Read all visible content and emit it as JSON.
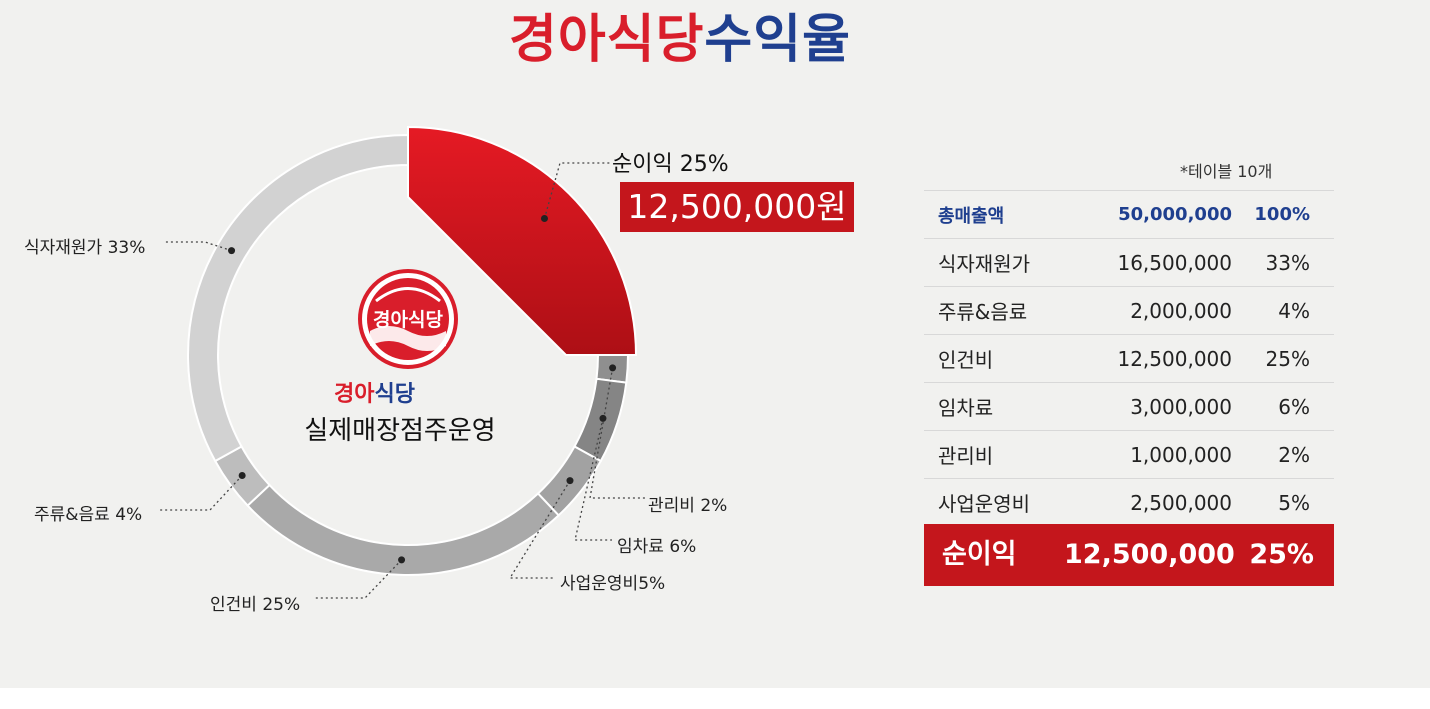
{
  "header": {
    "title_red": "경아식당",
    "title_blue": "수익율"
  },
  "chart_data": {
    "type": "pie",
    "variant": "donut",
    "slices": [
      {
        "name": "순이익",
        "value": 25,
        "color": "#d3131b"
      },
      {
        "name": "관리비",
        "value": 2,
        "color": "#8f8f8f"
      },
      {
        "name": "임차료",
        "value": 6,
        "color": "#858585"
      },
      {
        "name": "사업운영비",
        "value": 5,
        "color": "#a2a2a2"
      },
      {
        "name": "인건비",
        "value": 25,
        "color": "#a9a9a9"
      },
      {
        "name": "주류&음료",
        "value": 4,
        "color": "#bdbdbd"
      },
      {
        "name": "식자재원가",
        "value": 33,
        "color": "#d2d2d2"
      }
    ],
    "labels": {
      "net": "순이익 25%",
      "net_amount": "12,500,000원",
      "mgmt": "관리비 2%",
      "rent": "임차료 6%",
      "ops": "사업운영비5%",
      "labor": "인건비 25%",
      "drinks": "주류&음료 4%",
      "food": "식자재원가 33%"
    },
    "center": {
      "logo_text": "경아식당",
      "brand_red": "경아",
      "brand_blue": "식당",
      "subtitle": "실제매장점주운영"
    }
  },
  "table": {
    "note": "*테이블 10개",
    "rows": [
      {
        "name": "총매출액",
        "amount": "50,000,000",
        "pct": "100%"
      },
      {
        "name": "식자재원가",
        "amount": "16,500,000",
        "pct": "33%"
      },
      {
        "name": "주류&음료",
        "amount": "2,000,000",
        "pct": "4%"
      },
      {
        "name": "인건비",
        "amount": "12,500,000",
        "pct": "25%"
      },
      {
        "name": "임차료",
        "amount": "3,000,000",
        "pct": "6%"
      },
      {
        "name": "관리비",
        "amount": "1,000,000",
        "pct": "2%"
      },
      {
        "name": "사업운영비",
        "amount": "2,500,000",
        "pct": "5%"
      }
    ],
    "total": {
      "name": "순이익",
      "amount": "12,500,000",
      "pct": "25%"
    }
  },
  "colors": {
    "brand_red": "#d91e2b",
    "brand_blue": "#1f3f8f",
    "highlight_red": "#c4161c"
  }
}
